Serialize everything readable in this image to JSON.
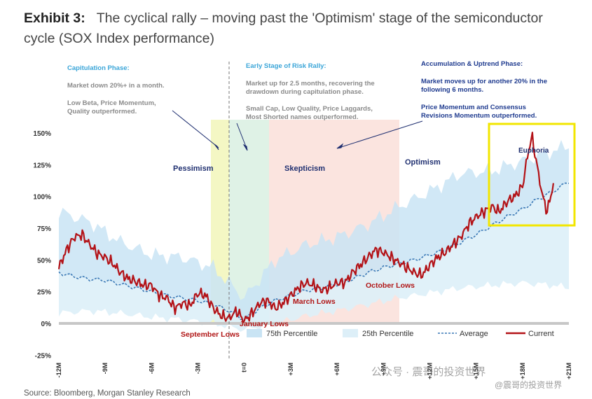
{
  "title": {
    "exhibit": "Exhibit 3:",
    "text": "The cyclical rally – moving past the 'Optimism' stage of the semiconductor cycle (SOX Index performance)"
  },
  "source": "Source: Bloomberg, Morgan Stanley Research",
  "watermark": {
    "main": "公众号 · 震哥的投资世界",
    "sub": "@震哥的投资世界"
  },
  "colors": {
    "current": "#b31217",
    "average": "#3a78b5",
    "band75": "#c9e4f4",
    "band25": "#ddeff8",
    "pessimism": "#f4f7c4",
    "earlyrally": "#dff2e6",
    "skepticism": "#fbe4df",
    "highlight": "#f2e600"
  },
  "annotations": [
    {
      "title": "Capitulation Phase:",
      "lines": [
        "Market down 20%+ in a month.",
        "",
        "Low Beta, Price Momentum,",
        "Quality outperformed."
      ]
    },
    {
      "title": "Early Stage of Risk Rally:",
      "lines": [
        "Market up for 2.5 months, recovering the",
        "drawdown during capitulation phase.",
        "",
        "Small Cap, Low Quality, Price Laggards,",
        "Most Shorted names outperformed."
      ]
    },
    {
      "title": "Accumulation & Uptrend Phase:",
      "lines": [
        "Market moves up for another 20% in the",
        "following 6 months.",
        "",
        "Price Momentum and Consensus",
        "Revisions Momentum outperformed."
      ]
    }
  ],
  "chart_data": {
    "type": "line",
    "xlabel": "",
    "ylabel": "",
    "x_ticks": [
      "-12M",
      "-9M",
      "-6M",
      "-3M",
      "t=0",
      "+3M",
      "+6M",
      "+9M",
      "+12M",
      "+15M",
      "+18M",
      "+21M"
    ],
    "x_range_months": [
      -12,
      21
    ],
    "y_ticks": [
      "150%",
      "125%",
      "100%",
      "75%",
      "50%",
      "25%",
      "0%",
      "-25%"
    ],
    "ylim": [
      -25,
      150
    ],
    "phases": [
      {
        "name": "Pessimism",
        "from": -1.3,
        "to": 0
      },
      {
        "name": "Skepticism",
        "from": 3,
        "to": 12
      },
      {
        "name": "Optimism",
        "from": 12,
        "to": 18
      },
      {
        "name": "Euphoria",
        "from": 18,
        "to": 21
      }
    ],
    "lows": [
      "September Lows",
      "January Lows",
      "March Lows",
      "October Lows"
    ],
    "legend": [
      "75th Percentile",
      "25th Percentile",
      "Average",
      "Current"
    ],
    "legend_placement": "bottom",
    "series": [
      {
        "name": "Current",
        "x": [
          -12,
          -11.5,
          -11,
          -10.5,
          -10,
          -9.5,
          -9,
          -8.5,
          -8,
          -7.5,
          -7,
          -6.5,
          -6,
          -5.5,
          -5,
          -4.5,
          -4,
          -3.5,
          -3,
          -2.5,
          -2,
          -1.5,
          -1,
          -0.5,
          0,
          0.5,
          1,
          1.5,
          2,
          2.5,
          3,
          3.5,
          4,
          4.5,
          5,
          5.5,
          6,
          6.5,
          7,
          7.5,
          8,
          8.5,
          9,
          9.5,
          10,
          10.5,
          11,
          11.5,
          12,
          12.5,
          13,
          13.5,
          14,
          14.5,
          15,
          15.5,
          16,
          16.5,
          17,
          17.5,
          18,
          18.3,
          18.6,
          19,
          19.3,
          19.6,
          20
        ],
        "values": [
          44,
          58,
          68,
          70,
          62,
          55,
          52,
          47,
          40,
          35,
          33,
          30,
          30,
          22,
          20,
          12,
          16,
          14,
          24,
          22,
          12,
          6,
          4,
          10,
          2,
          8,
          16,
          18,
          12,
          16,
          22,
          28,
          32,
          30,
          26,
          28,
          32,
          32,
          40,
          46,
          52,
          58,
          56,
          52,
          48,
          44,
          40,
          38,
          46,
          52,
          56,
          62,
          68,
          78,
          84,
          88,
          92,
          88,
          96,
          100,
          108,
          130,
          148,
          120,
          100,
          88,
          110
        ]
      },
      {
        "name": "Average",
        "x": [
          -12,
          -11,
          -10,
          -9,
          -8,
          -7,
          -6,
          -5,
          -4,
          -3,
          -2,
          -1,
          0,
          1,
          2,
          3,
          4,
          5,
          6,
          7,
          8,
          9,
          10,
          11,
          12,
          13,
          14,
          15,
          16,
          17,
          18,
          19,
          20,
          21
        ],
        "values": [
          40,
          37,
          35,
          34,
          31,
          28,
          25,
          22,
          20,
          18,
          15,
          10,
          3,
          12,
          18,
          22,
          26,
          28,
          31,
          35,
          40,
          44,
          47,
          50,
          54,
          58,
          64,
          70,
          77,
          84,
          90,
          98,
          104,
          112
        ]
      },
      {
        "name": "75th Percentile",
        "x": [
          -12,
          -10,
          -8,
          -6,
          -4,
          -2,
          0,
          2,
          4,
          6,
          8,
          10,
          12,
          14,
          16,
          18,
          20,
          21
        ],
        "values": [
          88,
          80,
          64,
          54,
          52,
          44,
          20,
          50,
          62,
          68,
          78,
          92,
          104,
          118,
          120,
          128,
          136,
          140
        ]
      },
      {
        "name": "25th Percentile",
        "x": [
          -12,
          -10,
          -8,
          -6,
          -4,
          -2,
          0,
          2,
          4,
          6,
          8,
          10,
          12,
          14,
          16,
          18,
          20,
          21
        ],
        "values": [
          8,
          10,
          8,
          5,
          3,
          0,
          -5,
          0,
          6,
          10,
          15,
          20,
          24,
          28,
          30,
          32,
          30,
          28
        ]
      }
    ]
  }
}
